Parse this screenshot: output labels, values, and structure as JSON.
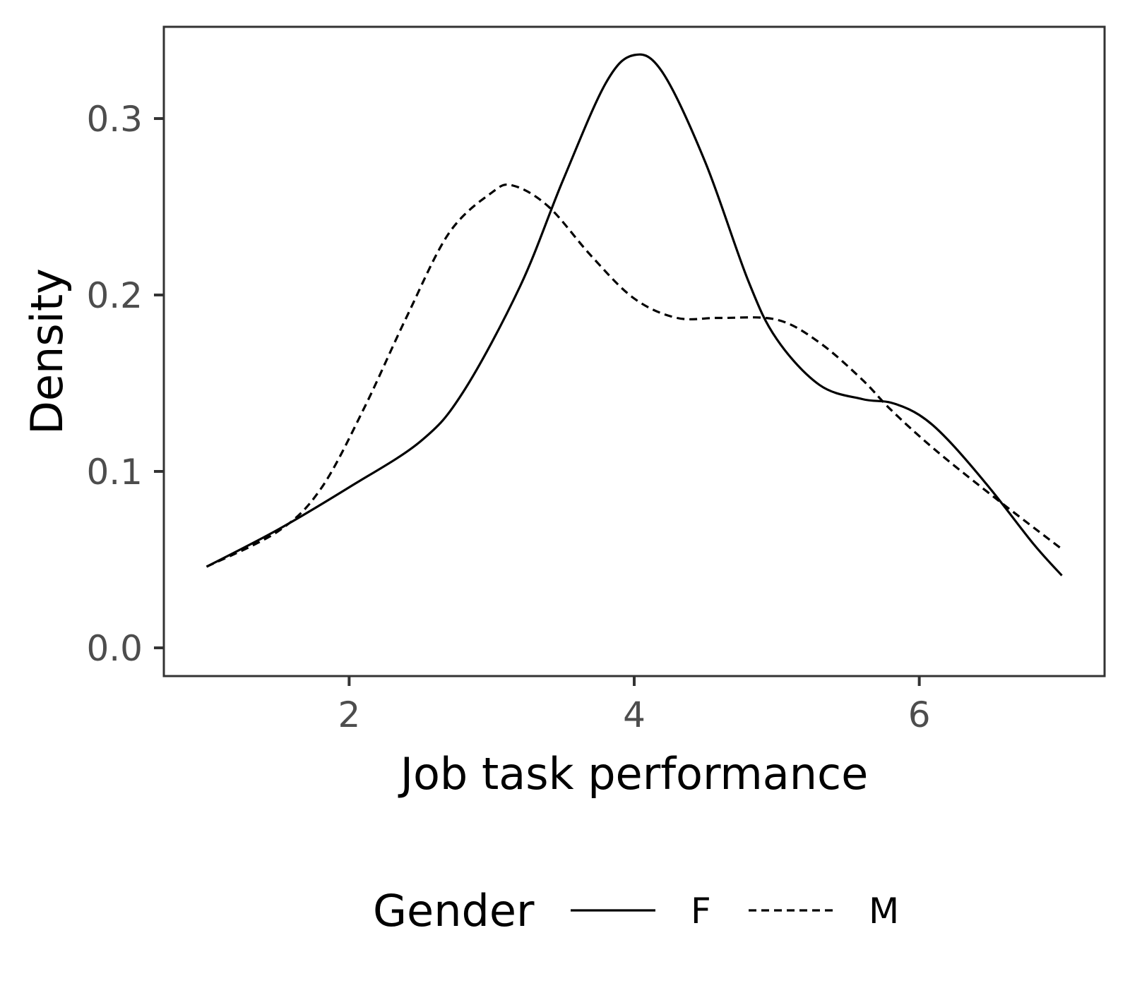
{
  "chart_data": {
    "type": "line",
    "title": "",
    "xlabel": "Job task performance",
    "ylabel": "Density",
    "xlim": [
      0.7,
      7.3
    ],
    "ylim": [
      -0.016,
      0.352
    ],
    "xticks": [
      2,
      4,
      6
    ],
    "yticks": [
      0.0,
      0.1,
      0.2,
      0.3
    ],
    "xtick_labels": [
      "2",
      "4",
      "6"
    ],
    "ytick_labels": [
      "0.0",
      "0.1",
      "0.2",
      "0.3"
    ],
    "grid": false,
    "legend": {
      "title": "Gender",
      "position": "bottom"
    },
    "series": [
      {
        "name": "F",
        "linestyle": "solid",
        "x": [
          1.0,
          1.5,
          2.0,
          2.5,
          2.8,
          3.2,
          3.5,
          3.8,
          4.0,
          4.2,
          4.5,
          4.8,
          5.0,
          5.3,
          5.6,
          5.8,
          6.0,
          6.2,
          6.5,
          6.8,
          7.0
        ],
        "y": [
          0.046,
          0.067,
          0.091,
          0.117,
          0.145,
          0.205,
          0.265,
          0.32,
          0.336,
          0.326,
          0.275,
          0.208,
          0.175,
          0.149,
          0.141,
          0.139,
          0.132,
          0.118,
          0.09,
          0.059,
          0.041
        ]
      },
      {
        "name": "M",
        "linestyle": "dashed",
        "x": [
          1.0,
          1.5,
          1.8,
          2.1,
          2.4,
          2.7,
          3.0,
          3.15,
          3.4,
          3.7,
          4.0,
          4.3,
          4.6,
          5.0,
          5.3,
          5.6,
          5.8,
          6.1,
          6.5,
          7.0
        ],
        "y": [
          0.046,
          0.066,
          0.09,
          0.135,
          0.187,
          0.235,
          0.258,
          0.262,
          0.25,
          0.222,
          0.198,
          0.187,
          0.187,
          0.186,
          0.173,
          0.152,
          0.135,
          0.113,
          0.087,
          0.056
        ]
      }
    ]
  }
}
